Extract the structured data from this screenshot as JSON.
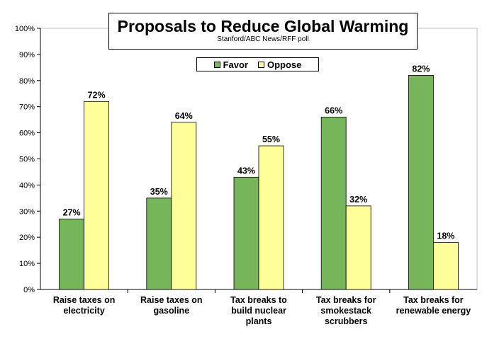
{
  "chart_data": {
    "type": "bar",
    "title": "Proposals to Reduce Global Warming",
    "subtitle": "Stanford/ABC News/RFF poll",
    "categories": [
      [
        "Raise taxes on",
        "electricity"
      ],
      [
        "Raise taxes on",
        "gasoline"
      ],
      [
        "Tax breaks to",
        "build nuclear",
        "plants"
      ],
      [
        "Tax breaks for",
        "smokestack",
        "scrubbers"
      ],
      [
        "Tax breaks for",
        "renewable energy"
      ]
    ],
    "series": [
      {
        "name": "Favor",
        "values": [
          27,
          35,
          43,
          66,
          82
        ],
        "color": "#77b55b"
      },
      {
        "name": "Oppose",
        "values": [
          72,
          64,
          55,
          32,
          18
        ],
        "color": "#ffff99"
      }
    ],
    "data_labels": {
      "Favor": [
        "27%",
        "35%",
        "43%",
        "66%",
        "82%"
      ],
      "Oppose": [
        "72%",
        "64%",
        "55%",
        "32%",
        "18%"
      ]
    },
    "yticks": [
      "0%",
      "10%",
      "20%",
      "30%",
      "40%",
      "50%",
      "60%",
      "70%",
      "80%",
      "90%",
      "100%"
    ],
    "ylim": [
      0,
      100
    ],
    "legend_position": "top-center",
    "grid": false
  }
}
